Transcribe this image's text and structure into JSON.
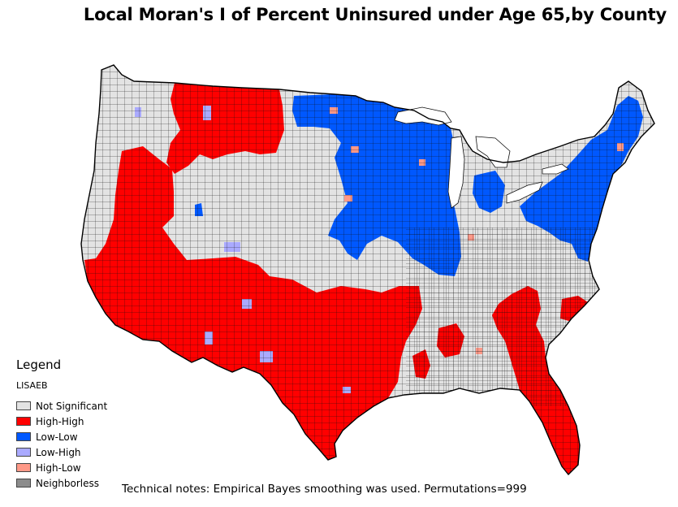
{
  "title": "Local Moran's I of Percent Uninsured under Age 65,by County",
  "legend": {
    "title": "Legend",
    "field": "LISAEB",
    "items": [
      {
        "label": "Not Significant",
        "color": "#e3e3e3"
      },
      {
        "label": "High-High",
        "color": "#ff0000"
      },
      {
        "label": "Low-Low",
        "color": "#0058ff"
      },
      {
        "label": "Low-High",
        "color": "#aaaaff"
      },
      {
        "label": "High-Low",
        "color": "#ff9988"
      },
      {
        "label": "Neighborless",
        "color": "#8c8c8c"
      }
    ]
  },
  "notes": "Technical notes: Empirical Bayes smoothing was used.  Permutations=999",
  "colors": {
    "not_significant": "#e3e3e3",
    "high_high": "#ff0000",
    "low_low": "#0058ff",
    "low_high": "#aaaaff",
    "high_low": "#ff9988",
    "border": "#111111"
  }
}
